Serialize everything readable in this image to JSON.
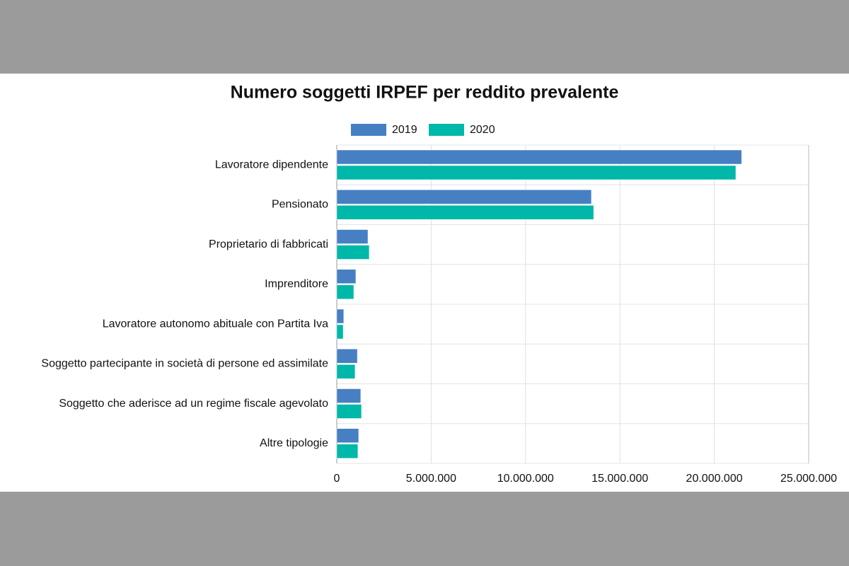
{
  "chart_data": {
    "type": "hbar",
    "title": "Numero soggetti IRPEF per reddito prevalente",
    "categories": [
      "Lavoratore dipendente",
      "Pensionato",
      "Proprietario di fabbricati",
      "Imprenditore",
      "Lavoratore autonomo abituale con Partita Iva",
      "Soggetto partecipante in società di persone ed assimilate",
      "Soggetto che aderisce ad un regime fiscale agevolato",
      "Altre tipologie"
    ],
    "series": [
      {
        "name": "2019",
        "color": "#4680c2",
        "values": [
          21450000,
          13490000,
          1650000,
          1010000,
          370000,
          1090000,
          1270000,
          1160000
        ]
      },
      {
        "name": "2020",
        "color": "#00b8a9",
        "values": [
          21140000,
          13610000,
          1720000,
          900000,
          340000,
          970000,
          1310000,
          1120000
        ]
      }
    ],
    "xlim": [
      0,
      25000000
    ],
    "xticks": [
      0,
      {
        "value": 5000000,
        "label": "5.000.000"
      },
      {
        "value": 10000000,
        "label": "10.000.000"
      },
      {
        "value": 15000000,
        "label": "15.000.000"
      },
      {
        "value": 20000000,
        "label": "20.000.000"
      },
      {
        "value": 25000000,
        "label": "25.000.000"
      }
    ],
    "grid": true
  }
}
